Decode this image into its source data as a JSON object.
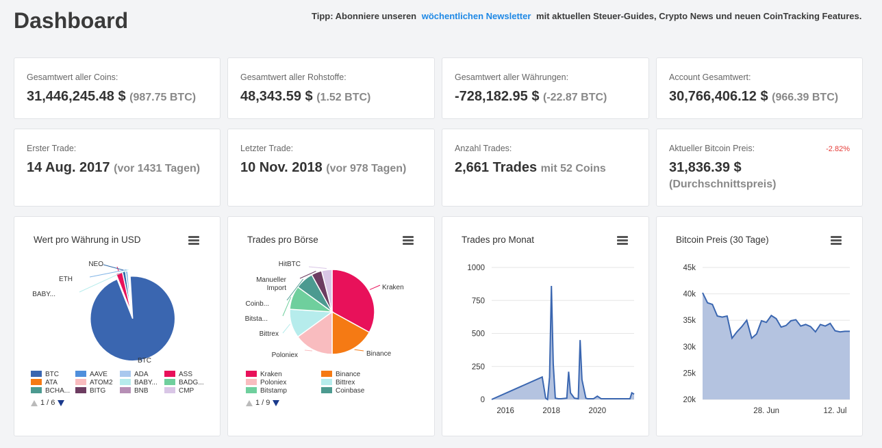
{
  "header": {
    "title": "Dashboard",
    "tip_prefix": "Tipp: Abonniere unseren",
    "tip_link": "wöchentlichen Newsletter",
    "tip_suffix": "mit aktuellen Steuer-Guides, Crypto News und neuen CoinTracking Features."
  },
  "stats": [
    {
      "label": "Gesamtwert aller Coins:",
      "value": "31,446,245.48 $",
      "sub": "(987.75 BTC)"
    },
    {
      "label": "Gesamtwert aller Rohstoffe:",
      "value": "48,343.59 $",
      "sub": "(1.52 BTC)"
    },
    {
      "label": "Gesamtwert aller Währungen:",
      "value": "-728,182.95 $",
      "sub": "(-22.87 BTC)"
    },
    {
      "label": "Account Gesamtwert:",
      "value": "30,766,406.12 $",
      "sub": "(966.39 BTC)"
    },
    {
      "label": "Erster Trade:",
      "value": "14 Aug. 2017",
      "sub": "(vor 1431 Tagen)"
    },
    {
      "label": "Letzter Trade:",
      "value": "10 Nov. 2018",
      "sub": "(vor 978 Tagen)"
    },
    {
      "label": "Anzahl Trades:",
      "value": "2,661 Trades",
      "sub": "mit 52 Coins"
    },
    {
      "label": "Aktueller Bitcoin Preis:",
      "value": "31,836.39 $",
      "sub": "(Durchschnittspreis)",
      "delta": "-2.82%"
    }
  ],
  "colors": {
    "accent": "#1e88e5",
    "negative": "#e53935",
    "btc": "#3a66b0",
    "kraken": "#e8115a",
    "binance": "#f57a14"
  },
  "chart_data": [
    {
      "type": "pie",
      "title": "Wert pro Währung in USD",
      "labels": [
        "BTC",
        "ASS",
        "NEO",
        "ETH",
        "BABY..."
      ],
      "values": [
        95.0,
        2.5,
        1.2,
        0.9,
        0.4
      ],
      "colors": [
        "#3a66b0",
        "#e8115a",
        "#2f6aa8",
        "#7fb3e6",
        "#b6ecec"
      ],
      "legend": [
        {
          "label": "BTC",
          "color": "#3a66b0"
        },
        {
          "label": "AAVE",
          "color": "#4f8fdc"
        },
        {
          "label": "ADA",
          "color": "#a9c8ee"
        },
        {
          "label": "ASS",
          "color": "#e8115a"
        },
        {
          "label": "ATA",
          "color": "#f57a14"
        },
        {
          "label": "ATOM2",
          "color": "#f9bcbf"
        },
        {
          "label": "BABY...",
          "color": "#b6ecec"
        },
        {
          "label": "BADG...",
          "color": "#6fcf9d"
        },
        {
          "label": "BCHA...",
          "color": "#4c9a90"
        },
        {
          "label": "BITG",
          "color": "#6d3c61"
        },
        {
          "label": "BNB",
          "color": "#b68fb5"
        },
        {
          "label": "CMP",
          "color": "#d9c6e6"
        }
      ],
      "pager": "1 / 6"
    },
    {
      "type": "pie",
      "title": "Trades pro Börse",
      "labels": [
        "Kraken",
        "Binance",
        "Poloniex",
        "Bittrex",
        "Bitsta...",
        "Coinb...",
        "Manueller Import",
        "HitBTC"
      ],
      "values": [
        33,
        17,
        15,
        11,
        9,
        7,
        4,
        4
      ],
      "colors": [
        "#e8115a",
        "#f57a14",
        "#f9bcbf",
        "#b6ecec",
        "#6fcf9d",
        "#4c9a90",
        "#6d3c61",
        "#d9c6e6"
      ],
      "legend": [
        {
          "label": "Kraken",
          "color": "#e8115a"
        },
        {
          "label": "Binance",
          "color": "#f57a14"
        },
        {
          "label": "Poloniex",
          "color": "#f9bcbf"
        },
        {
          "label": "Bittrex",
          "color": "#b6ecec"
        },
        {
          "label": "Bitstamp",
          "color": "#6fcf9d"
        },
        {
          "label": "Coinbase",
          "color": "#4c9a90"
        }
      ],
      "pager": "1 / 9"
    },
    {
      "type": "area",
      "title": "Trades pro Monat",
      "x_ticks": [
        "2016",
        "2018",
        "2020"
      ],
      "y_ticks": [
        "0",
        "250",
        "500",
        "750",
        "1000"
      ],
      "ylim": [
        0,
        1000
      ],
      "xlim": [
        2015.4,
        2021.6
      ],
      "x": [
        2015.4,
        2017.6,
        2017.75,
        2017.83,
        2017.92,
        2018.0,
        2018.08,
        2018.17,
        2018.3,
        2018.42,
        2018.67,
        2018.75,
        2018.83,
        2019.0,
        2019.17,
        2019.25,
        2019.33,
        2019.5,
        2019.58,
        2019.67,
        2019.83,
        2020.0,
        2020.17,
        2020.5,
        2021.0,
        2021.3,
        2021.42,
        2021.5,
        2021.6
      ],
      "y": [
        0,
        170,
        10,
        0,
        170,
        860,
        270,
        10,
        5,
        5,
        10,
        210,
        50,
        10,
        5,
        450,
        150,
        10,
        5,
        5,
        5,
        25,
        5,
        5,
        5,
        5,
        5,
        50,
        40
      ],
      "color": "#3a66b0"
    },
    {
      "type": "area",
      "title": "Bitcoin Preis (30 Tage)",
      "x_ticks": [
        "28. Jun",
        "12. Jul"
      ],
      "x_tick_positions": [
        13,
        27
      ],
      "y_ticks": [
        "20k",
        "25k",
        "30k",
        "35k",
        "40k",
        "45k"
      ],
      "ylim": [
        20000,
        45000
      ],
      "x": [
        0,
        1,
        2,
        3,
        4,
        5,
        6,
        7,
        8,
        9,
        10,
        11,
        12,
        13,
        14,
        15,
        16,
        17,
        18,
        19,
        20,
        21,
        22,
        23,
        24,
        25,
        26,
        27,
        28,
        29,
        30
      ],
      "y": [
        40200,
        38300,
        38000,
        35800,
        35600,
        35800,
        31600,
        32800,
        33800,
        35000,
        31600,
        32400,
        34900,
        34600,
        35900,
        35300,
        33700,
        34000,
        34900,
        35100,
        33900,
        34200,
        33800,
        32800,
        34200,
        33900,
        34400,
        33000,
        32800,
        32900,
        32900
      ],
      "color": "#3a66b0"
    }
  ]
}
